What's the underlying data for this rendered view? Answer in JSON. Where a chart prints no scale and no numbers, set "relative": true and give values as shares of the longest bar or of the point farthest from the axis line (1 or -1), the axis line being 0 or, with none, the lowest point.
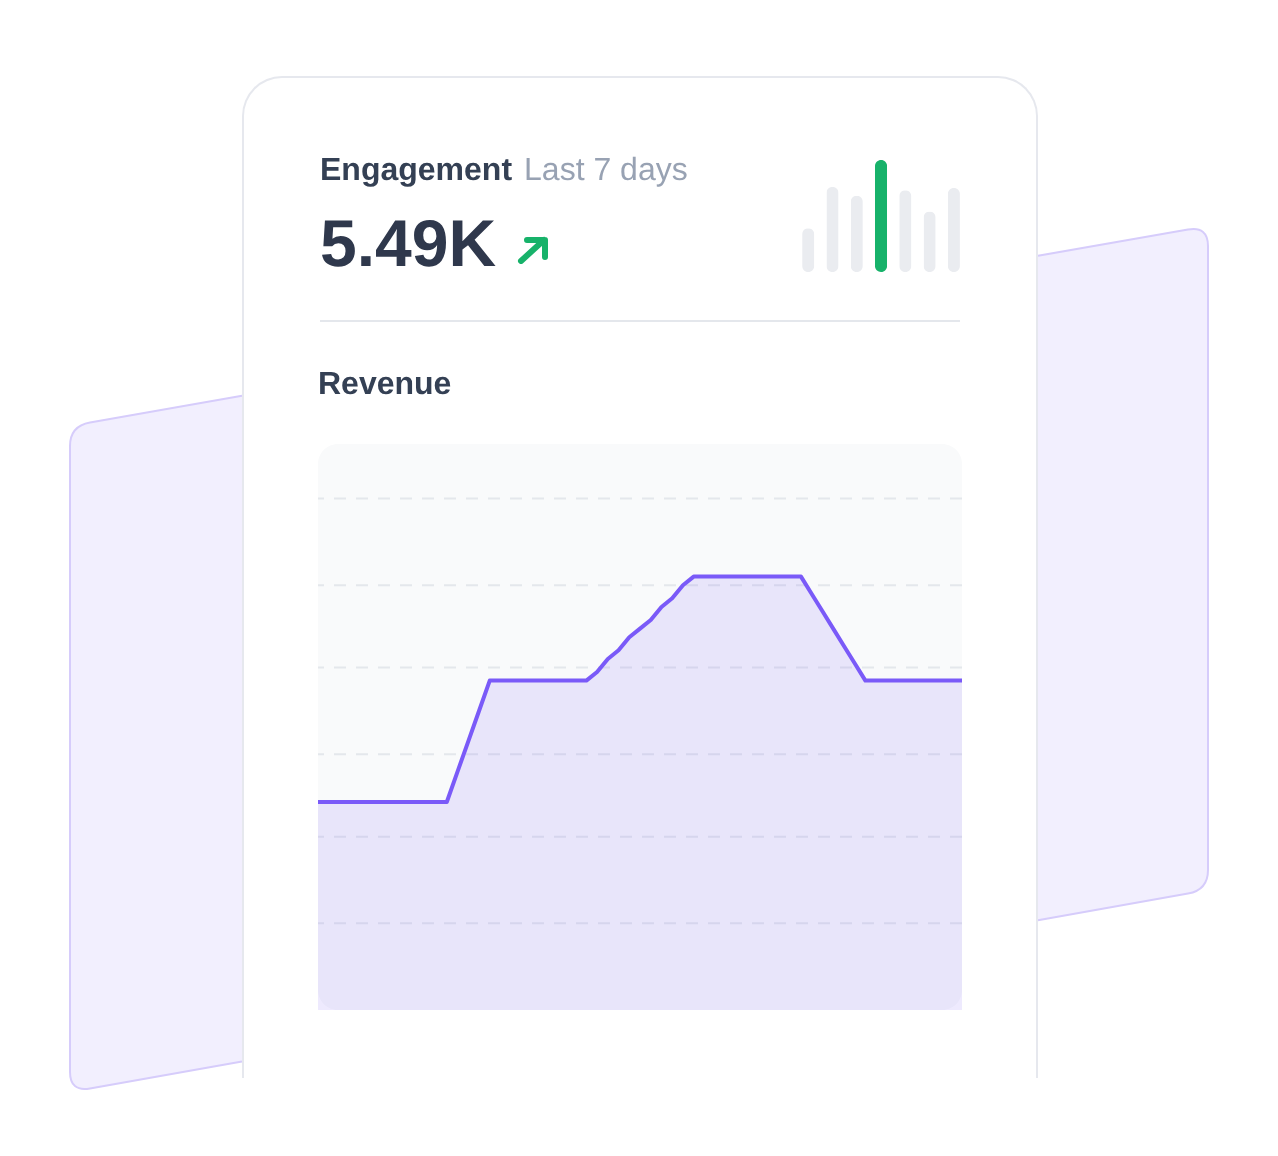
{
  "chart_data": [
    {
      "type": "other",
      "title": "Engagement",
      "subtitle": "Last 7 days",
      "annotations": [
        "5.49K"
      ]
    },
    {
      "type": "bar",
      "relative": true,
      "categories": [
        null,
        null,
        null,
        null,
        null,
        null,
        null
      ],
      "values": [
        0.39,
        0.76,
        0.68,
        1,
        0.73,
        0.54,
        0.75
      ],
      "colors": [
        "#eaecf0",
        "#eaecf0",
        "#eaecf0",
        "#17b26a",
        "#eaecf0",
        "#eaecf0",
        "#eaecf0"
      ]
    },
    {
      "type": "area",
      "title": "Revenue",
      "relative": true,
      "ref_lines": [
        {
          "axis": "y",
          "value": 0.2,
          "color": "#e4e7ec",
          "line_style": "dashed"
        },
        {
          "axis": "y",
          "value": 0.4,
          "color": "#e4e7ec",
          "line_style": "dashed"
        },
        {
          "axis": "y",
          "value": 0.59,
          "color": "#e4e7ec",
          "line_style": "dashed"
        },
        {
          "axis": "y",
          "value": 0.79,
          "color": "#e4e7ec",
          "line_style": "dashed"
        },
        {
          "axis": "y",
          "value": 0.98,
          "color": "#e4e7ec",
          "line_style": "dashed"
        },
        {
          "axis": "y",
          "value": 1.18,
          "color": "#e4e7ec",
          "line_style": "dashed"
        }
      ],
      "categories": [
        null,
        null,
        null,
        null,
        null,
        null,
        null,
        null,
        null,
        null,
        null,
        null,
        null,
        null,
        null,
        null,
        null,
        null,
        null,
        null,
        null,
        null,
        null,
        null,
        null,
        null,
        null,
        null,
        null,
        null,
        null,
        null,
        null,
        null,
        null,
        null,
        null,
        null,
        null,
        null,
        null,
        null,
        null,
        null,
        null,
        null,
        null,
        null,
        null,
        null,
        null,
        null,
        null,
        null,
        null,
        null,
        null,
        null,
        null,
        null,
        null
      ],
      "series": [
        {
          "color": "#7a5af8",
          "values": [
            0.48,
            0.48,
            0.48,
            0.48,
            0.48,
            0.48,
            0.48,
            0.48,
            0.48,
            0.48,
            0.48,
            0.48,
            0.48,
            0.55,
            0.62,
            0.69,
            0.76,
            0.76,
            0.76,
            0.76,
            0.76,
            0.76,
            0.76,
            0.76,
            0.76,
            0.76,
            0.78,
            0.81,
            0.83,
            0.86,
            0.88,
            0.9,
            0.93,
            0.95,
            0.98,
            1,
            1,
            1,
            1,
            1,
            1,
            1,
            1,
            1,
            1,
            1,
            0.96,
            0.92,
            0.88,
            0.84,
            0.8,
            0.76,
            0.76,
            0.76,
            0.76,
            0.76,
            0.76,
            0.76,
            0.76,
            0.76,
            0.76
          ]
        }
      ]
    }
  ]
}
